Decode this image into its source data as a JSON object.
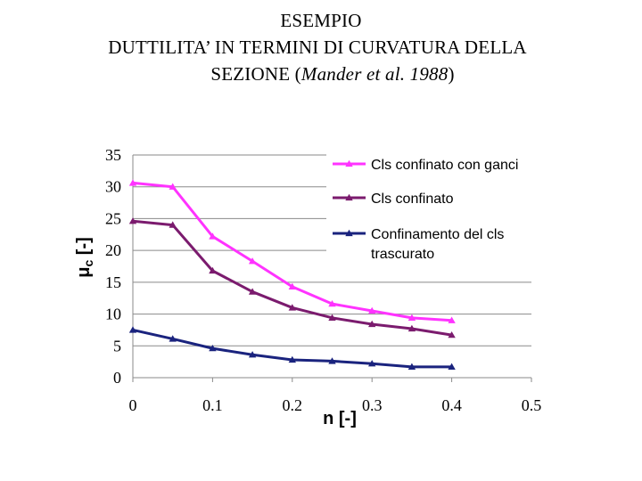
{
  "title": {
    "line1": "ESEMPIO",
    "line2": "DUTTILITA’ IN TERMINI DI CURVATURA DELLA",
    "line3_prefix": "SEZIONE (",
    "line3_italic": "Mander et al. 1988",
    "line3_suffix": ")"
  },
  "chart_data": {
    "type": "line",
    "xlabel": "n  [-]",
    "ylabel": "μc  [-]",
    "xlim": [
      0,
      0.5
    ],
    "ylim": [
      0,
      35
    ],
    "xticks": [
      0,
      0.1,
      0.2,
      0.3,
      0.4,
      0.5
    ],
    "xtick_labels": [
      "0",
      "0.1",
      "0.2",
      "0.3",
      "0.4",
      "0.5"
    ],
    "yticks": [
      0,
      5,
      10,
      15,
      20,
      25,
      30,
      35
    ],
    "ytick_labels": [
      "0",
      "5",
      "10",
      "15",
      "20",
      "25",
      "30",
      "35"
    ],
    "grid": "horizontal",
    "legend_position": "top-right",
    "x": [
      0,
      0.05,
      0.1,
      0.15,
      0.2,
      0.25,
      0.3,
      0.35,
      0.4
    ],
    "series": [
      {
        "name": "Cls confinato con ganci",
        "color": "#ff33ff",
        "marker": "triangle",
        "values": [
          30.6,
          30.0,
          22.2,
          18.3,
          14.3,
          11.6,
          10.5,
          9.4,
          9.0
        ]
      },
      {
        "name": "Cls confinato",
        "color": "#7b1b6e",
        "marker": "triangle",
        "values": [
          24.6,
          24.0,
          16.8,
          13.5,
          11.0,
          9.4,
          8.4,
          7.7,
          6.7
        ]
      },
      {
        "name": "Confinamento del cls trascurato",
        "color": "#1a237e",
        "marker": "triangle",
        "values": [
          7.5,
          6.1,
          4.6,
          3.6,
          2.8,
          2.6,
          2.2,
          1.7,
          1.7
        ]
      }
    ]
  }
}
